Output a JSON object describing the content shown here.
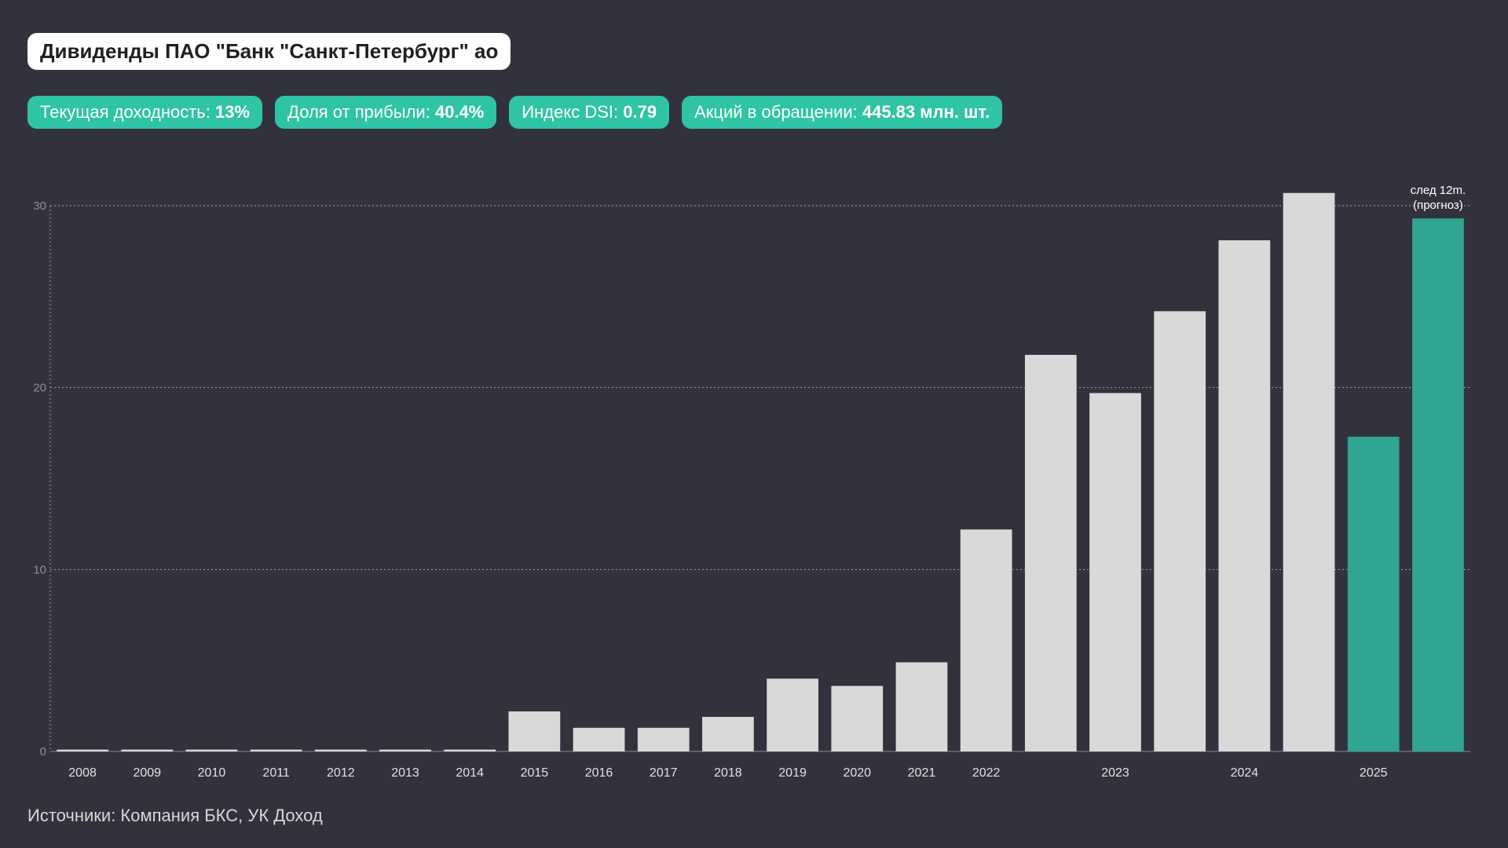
{
  "header": {
    "title": "Дивиденды ПАО \"Банк \"Санкт-Петербург\" ао"
  },
  "badges": [
    {
      "label": "Текущая доходность: ",
      "value": "13%"
    },
    {
      "label": "Доля от прибыли: ",
      "value": "40.4%"
    },
    {
      "label": "Индекс DSI: ",
      "value": "0.79"
    },
    {
      "label": "Акций в обращении: ",
      "value": "445.83 млн. шт."
    }
  ],
  "footer": {
    "source": "Источники: Компания БКС, УК Доход"
  },
  "colors": {
    "background": "#32323e",
    "bar_historical": "#d9d9d9",
    "bar_accent": "#30a591",
    "badge": "#2fc4a4"
  },
  "chart_data": {
    "type": "bar",
    "title": "",
    "xlabel": "",
    "ylabel": "",
    "ylim": [
      0,
      30
    ],
    "yticks": [
      0,
      10,
      20,
      30
    ],
    "grid": "horizontal-dotted",
    "categories": [
      "2008",
      "2009",
      "2010",
      "2011",
      "2012",
      "2013",
      "2014",
      "2015",
      "2016",
      "2017",
      "2018",
      "2019",
      "2020",
      "2021",
      "2022",
      "",
      "2023",
      "",
      "2024",
      "",
      "2025",
      ""
    ],
    "values": [
      0.1,
      0.1,
      0.1,
      0.1,
      0.1,
      0.1,
      0.1,
      2.2,
      1.3,
      1.3,
      1.9,
      4.0,
      3.6,
      4.9,
      12.2,
      21.8,
      19.7,
      24.2,
      28.1,
      30.7,
      17.3,
      29.3
    ],
    "highlight": [
      false,
      false,
      false,
      false,
      false,
      false,
      false,
      false,
      false,
      false,
      false,
      false,
      false,
      false,
      false,
      false,
      false,
      false,
      false,
      false,
      true,
      true
    ],
    "annotations": [
      {
        "index": 21,
        "text": [
          "след 12m.",
          "(прогноз)"
        ]
      }
    ]
  }
}
